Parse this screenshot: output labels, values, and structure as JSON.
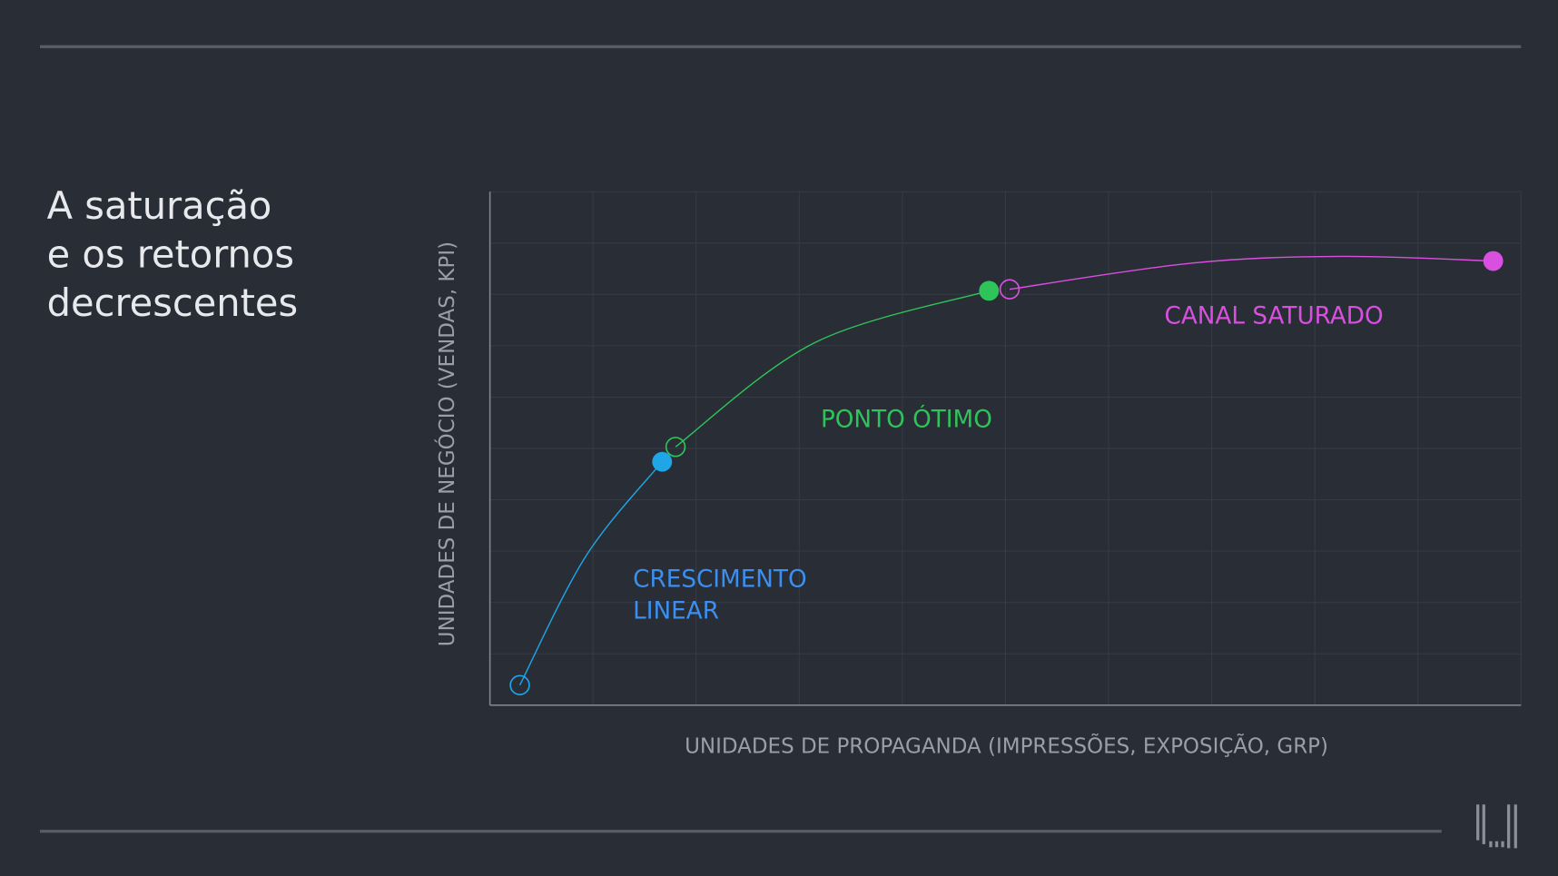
{
  "chart_data": {
    "type": "line",
    "title": [
      "A saturação",
      "e os retornos",
      "decrescentes"
    ],
    "x_label": "UNIDADES DE PROPAGANDA (IMPRESSÕES, EXPOSIÇÃO, GRP)",
    "y_label": "UNIDADES DE NEGÓCIO (VENDAS, KPI)",
    "xlim": [
      0,
      10
    ],
    "ylim": [
      0,
      10
    ],
    "grid": {
      "x": 10,
      "y": 10
    },
    "start_marker": "open",
    "end_marker": "filled",
    "series": [
      {
        "color": "#1ea6e6",
        "x": [
          0.29,
          0.93,
          1.67
        ],
        "values": [
          0.39,
          2.9,
          4.74
        ]
      },
      {
        "color": "#2ec45a",
        "x": [
          1.8,
          3.15,
          4.84
        ],
        "values": [
          5.03,
          7.06,
          8.07
        ]
      },
      {
        "color": "#d94fe0",
        "x": [
          5.04,
          6.81,
          8.26,
          9.73
        ],
        "values": [
          8.1,
          8.61,
          8.74,
          8.65
        ]
      }
    ],
    "annotations": [
      {
        "text": [
          "CRESCIMENTO",
          "LINEAR"
        ],
        "color": "#3b8ff0"
      },
      {
        "text": [
          "PONTO ÓTIMO"
        ],
        "color": "#2ec45a"
      },
      {
        "text": [
          "CANAL SATURADO"
        ],
        "color": "#d94fe0"
      }
    ]
  }
}
